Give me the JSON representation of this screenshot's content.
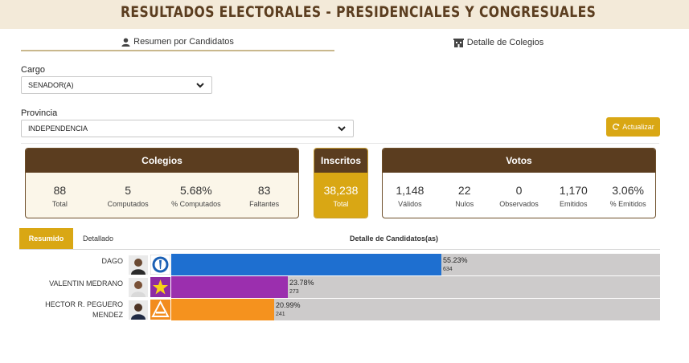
{
  "banner": {
    "title": "RESULTADOS ELECTORALES - PRESIDENCIALES Y CONGRESUALES"
  },
  "tabs": [
    {
      "label": "Resumen por Candidatos",
      "icon": "user-icon"
    },
    {
      "label": "Detalle de Colegios",
      "icon": "building-icon"
    }
  ],
  "filters": {
    "cargo": {
      "label": "Cargo",
      "value": "SENADOR(A)"
    },
    "provincia": {
      "label": "Provincia",
      "value": "INDEPENDENCIA"
    },
    "refresh_label": "Actualizar"
  },
  "colegios": {
    "title": "Colegios",
    "stats": [
      {
        "value": "88",
        "label": "Total"
      },
      {
        "value": "5",
        "label": "Computados"
      },
      {
        "value": "5.68%",
        "label": "% Computados"
      },
      {
        "value": "83",
        "label": "Faltantes"
      }
    ]
  },
  "inscritos": {
    "title": "Inscritos",
    "value": "38,238",
    "label": "Total"
  },
  "votos": {
    "title": "Votos",
    "stats": [
      {
        "value": "1,148",
        "label": "Válidos"
      },
      {
        "value": "22",
        "label": "Nulos"
      },
      {
        "value": "0",
        "label": "Observados"
      },
      {
        "value": "1,170",
        "label": "Emitidos"
      },
      {
        "value": "3.06%",
        "label": "% Emitidos"
      }
    ]
  },
  "results_tabs": {
    "active": "Resumido",
    "other": "Detallado",
    "title": "Detalle de Candidatos(as)"
  },
  "colors": {
    "brown": "#5b3d1f",
    "gold": "#d9a714",
    "track": "#cdcbcb"
  },
  "candidates": [
    {
      "name_lines": [
        "DAGO"
      ],
      "percent_label": "55.23%",
      "percent": 55.23,
      "votes": "634",
      "color": "#1e6fd0",
      "logo": "torch-logo-icon"
    },
    {
      "name_lines": [
        "VALENTIN MEDRANO"
      ],
      "percent_label": "23.78%",
      "percent": 23.78,
      "votes": "273",
      "color": "#9b2fae",
      "logo": "star-logo-icon"
    },
    {
      "name_lines": [
        "HECTOR R. PEGUERO",
        "MENDEZ"
      ],
      "percent_label": "20.99%",
      "percent": 20.99,
      "votes": "241",
      "color": "#f5921e",
      "logo": "triangle-logo-icon"
    }
  ]
}
